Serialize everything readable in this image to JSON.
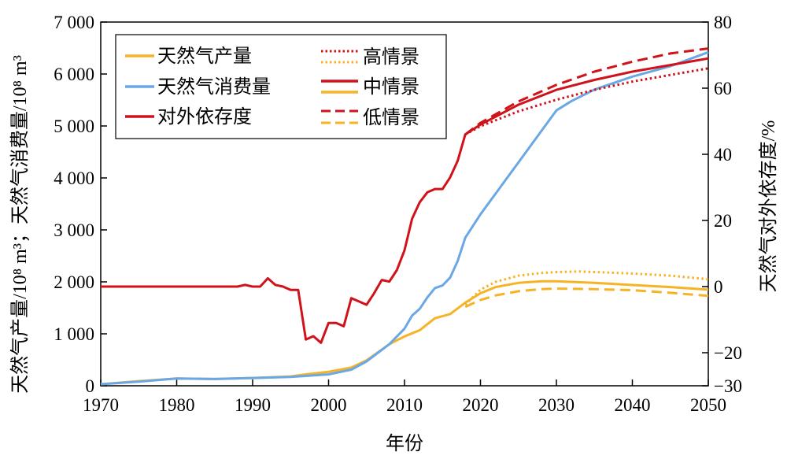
{
  "chart_data": {
    "type": "line",
    "xlabel": "年份",
    "ylabel_left": "天然气产量/10⁸ m³；天然气消费量/10⁸ m³",
    "ylabel_right": "天然气对外依存度/%",
    "xlim": [
      1970,
      2050
    ],
    "ylim_left": [
      0,
      7000
    ],
    "ylim_right": [
      -30,
      80
    ],
    "x_ticks": [
      1970,
      1980,
      1990,
      2000,
      2010,
      2020,
      2030,
      2040,
      2050
    ],
    "y_left_ticks": [
      0,
      1000,
      2000,
      3000,
      4000,
      5000,
      6000,
      7000
    ],
    "y_left_tick_labels": [
      "0",
      "1 000",
      "2 000",
      "3 000",
      "4 000",
      "5 000",
      "6 000",
      "7 000"
    ],
    "y_right_ticks": [
      -30,
      -20,
      0,
      20,
      40,
      60,
      80
    ],
    "y_right_tick_labels": [
      "−30",
      "−20",
      "0",
      "20",
      "40",
      "60",
      "80"
    ],
    "grid": false,
    "legend_position": "top-left",
    "legend": {
      "series": [
        {
          "label": "天然气产量",
          "color": "#F5B325"
        },
        {
          "label": "天然气消费量",
          "color": "#6AA8E5"
        },
        {
          "label": "对外依存度",
          "color": "#D0131A"
        }
      ],
      "scenarios": [
        {
          "label": "高情景",
          "style": "dotted"
        },
        {
          "label": "中情景",
          "style": "solid"
        },
        {
          "label": "低情景",
          "style": "dashed"
        }
      ]
    },
    "colors": {
      "production": "#F5B325",
      "consumption": "#6AA8E5",
      "dependency": "#D0131A"
    },
    "series": [
      {
        "key": "production",
        "axis": "left",
        "style": "solid",
        "x": [
          1970,
          1975,
          1980,
          1985,
          1990,
          1995,
          1997,
          2000,
          2003,
          2005,
          2008,
          2010,
          2012,
          2014,
          2016,
          2018,
          2020,
          2022,
          2025,
          2028,
          2030,
          2035,
          2040,
          2045,
          2050
        ],
        "values": [
          30,
          90,
          140,
          130,
          150,
          180,
          220,
          270,
          350,
          490,
          800,
          950,
          1070,
          1300,
          1380,
          1600,
          1780,
          1900,
          1980,
          2010,
          2010,
          1980,
          1940,
          1900,
          1850
        ]
      },
      {
        "key": "production_high",
        "axis": "left",
        "style": "dotted",
        "x": [
          2018,
          2020,
          2022,
          2025,
          2028,
          2030,
          2033,
          2035,
          2040,
          2045,
          2050
        ],
        "values": [
          1560,
          1850,
          2000,
          2120,
          2170,
          2190,
          2200,
          2190,
          2160,
          2120,
          2050
        ]
      },
      {
        "key": "production_low",
        "axis": "left",
        "style": "dashed",
        "x": [
          2018,
          2020,
          2022,
          2025,
          2028,
          2030,
          2035,
          2040,
          2045,
          2050
        ],
        "values": [
          1520,
          1650,
          1740,
          1820,
          1860,
          1870,
          1860,
          1840,
          1790,
          1730
        ]
      },
      {
        "key": "consumption",
        "axis": "left",
        "style": "solid",
        "x": [
          1970,
          1975,
          1980,
          1985,
          1990,
          1995,
          2000,
          2003,
          2005,
          2008,
          2010,
          2011,
          2012,
          2013,
          2014,
          2015,
          2016,
          2017,
          2018,
          2020,
          2025,
          2028,
          2030,
          2032,
          2035,
          2040,
          2045,
          2050
        ],
        "values": [
          30,
          80,
          140,
          130,
          150,
          170,
          220,
          310,
          470,
          800,
          1100,
          1350,
          1480,
          1700,
          1880,
          1930,
          2080,
          2400,
          2850,
          3300,
          4300,
          4900,
          5300,
          5480,
          5700,
          5950,
          6150,
          6420
        ]
      },
      {
        "key": "dependency",
        "axis": "right",
        "style": "solid",
        "x": [
          1970,
          1988,
          1989,
          1990,
          1991,
          1992,
          1993,
          1994,
          1995,
          1996,
          1997,
          1998,
          1999,
          2000,
          2001,
          2002,
          2003,
          2004,
          2005,
          2006,
          2007,
          2008,
          2009,
          2010,
          2011,
          2012,
          2013,
          2014,
          2015,
          2016,
          2017,
          2018,
          2020,
          2025,
          2030,
          2035,
          2040,
          2045,
          2050
        ],
        "values": [
          0,
          0,
          0.5,
          0,
          0,
          2.5,
          0.5,
          0,
          -1,
          -1,
          -16,
          -15,
          -17,
          -11,
          -11,
          -12,
          -3.5,
          -4.5,
          -5.5,
          -2,
          2,
          1.5,
          5,
          11,
          20.5,
          25.5,
          28.5,
          29.5,
          29.5,
          33,
          38,
          46,
          49,
          55,
          59.5,
          62.5,
          65,
          67,
          69
        ]
      },
      {
        "key": "dependency_high",
        "axis": "right",
        "style": "dotted",
        "x": [
          2018,
          2020,
          2025,
          2030,
          2035,
          2040,
          2045,
          2050
        ],
        "values": [
          46,
          48.5,
          53,
          56.5,
          59.5,
          62,
          64,
          66
        ]
      },
      {
        "key": "dependency_low",
        "axis": "right",
        "style": "dashed",
        "x": [
          2018,
          2020,
          2025,
          2030,
          2035,
          2040,
          2045,
          2050
        ],
        "values": [
          46,
          49.5,
          56,
          61,
          65,
          68,
          70.5,
          72
        ]
      }
    ]
  }
}
